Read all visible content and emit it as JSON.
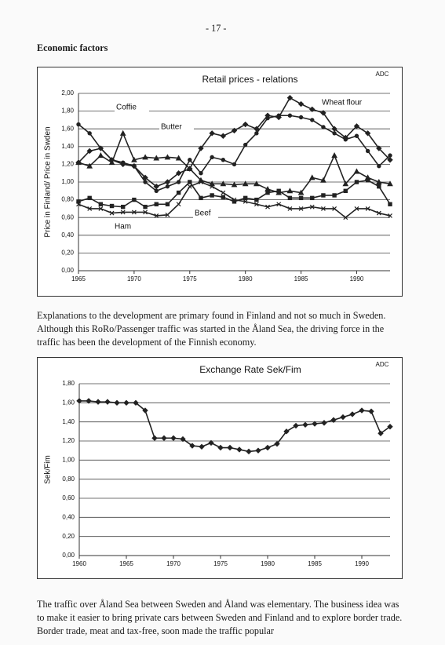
{
  "page_number": "- 17 -",
  "heading": "Economic factors",
  "paragraphs": [
    "Explanations to the development are primary found in Finland and not so much in Sweden. Although this RoRo/Passenger traffic was started in the Åland Sea, the driving force in the traffic has been the development of the Finnish economy.",
    "The traffic over Åland Sea between Sweden and Åland was elementary. The business idea was to make it easier to bring private cars between Sweden and Finland and to explore border trade. Border trade, meat and tax-free, soon made the traffic popular"
  ],
  "chart_data": [
    {
      "type": "line",
      "title": "Retail prices - relations",
      "source": "ADC",
      "y_label": "Price in Finland/ Price in Swden",
      "x": [
        1965,
        1966,
        1967,
        1968,
        1969,
        1970,
        1971,
        1972,
        1973,
        1974,
        1975,
        1976,
        1977,
        1978,
        1979,
        1980,
        1981,
        1982,
        1983,
        1984,
        1985,
        1986,
        1987,
        1988,
        1989,
        1990,
        1991,
        1992,
        1993
      ],
      "xlim": [
        1965,
        1993
      ],
      "xticks": [
        1965,
        1970,
        1975,
        1980,
        1985,
        1990
      ],
      "ylim": [
        0,
        2
      ],
      "yticks": [
        {
          "value": 0,
          "label": "0,00"
        },
        {
          "value": 0.2,
          "label": "0,20"
        },
        {
          "value": 0.4,
          "label": "0,40"
        },
        {
          "value": 0.6,
          "label": "0,60"
        },
        {
          "value": 0.8,
          "label": "0,80"
        },
        {
          "value": 1,
          "label": "1,00"
        },
        {
          "value": 1.2,
          "label": "1,20"
        },
        {
          "value": 1.4,
          "label": "1,40"
        },
        {
          "value": 1.6,
          "label": "1,60"
        },
        {
          "value": 1.8,
          "label": "1,80"
        },
        {
          "value": 2,
          "label": "2,00"
        }
      ],
      "grid": true,
      "series": [
        {
          "name": "Coffie",
          "color": "#222222",
          "marker": "triangle",
          "values": [
            1.22,
            1.18,
            1.3,
            1.22,
            1.55,
            1.25,
            1.28,
            1.27,
            1.28,
            1.27,
            1.15,
            1.02,
            0.98,
            0.98,
            0.97,
            0.98,
            0.98,
            0.92,
            0.88,
            0.9,
            0.88,
            1.05,
            1.02,
            1.3,
            0.98,
            1.12,
            1.05,
            1.0,
            0.98
          ]
        },
        {
          "name": "Butter",
          "color": "#222222",
          "marker": "circle",
          "values": [
            1.65,
            1.55,
            1.38,
            1.25,
            1.22,
            1.18,
            1.0,
            0.9,
            0.95,
            1.0,
            1.25,
            1.1,
            1.28,
            1.25,
            1.2,
            1.42,
            1.55,
            1.72,
            1.75,
            1.75,
            1.73,
            1.7,
            1.62,
            1.55,
            1.48,
            1.52,
            1.35,
            1.18,
            1.3
          ]
        },
        {
          "name": "Wheat flour",
          "color": "#222222",
          "marker": "diamond",
          "values": [
            1.22,
            1.35,
            1.38,
            1.25,
            1.2,
            1.18,
            1.05,
            0.95,
            1.0,
            1.1,
            1.15,
            1.38,
            1.55,
            1.52,
            1.58,
            1.65,
            1.6,
            1.75,
            1.73,
            1.95,
            1.88,
            1.82,
            1.78,
            1.6,
            1.5,
            1.63,
            1.55,
            1.38,
            1.25
          ]
        },
        {
          "name": "Beef",
          "color": "#222222",
          "marker": "square",
          "values": [
            0.78,
            0.82,
            0.75,
            0.73,
            0.72,
            0.8,
            0.72,
            0.75,
            0.75,
            0.88,
            1.0,
            0.82,
            0.85,
            0.83,
            0.78,
            0.82,
            0.8,
            0.88,
            0.9,
            0.82,
            0.82,
            0.82,
            0.85,
            0.85,
            0.9,
            1.0,
            1.02,
            0.95,
            0.75
          ]
        },
        {
          "name": "Ham",
          "color": "#222222",
          "marker": "x",
          "values": [
            0.75,
            0.7,
            0.7,
            0.65,
            0.66,
            0.66,
            0.66,
            0.62,
            0.63,
            0.75,
            0.95,
            1.0,
            0.95,
            0.88,
            0.8,
            0.78,
            0.75,
            0.72,
            0.75,
            0.7,
            0.7,
            0.72,
            0.7,
            0.7,
            0.6,
            0.7,
            0.7,
            0.65,
            0.62
          ]
        }
      ]
    },
    {
      "type": "line",
      "title": "Exchange Rate Sek/Fim",
      "source": "ADC",
      "y_label": "Sek/Fim",
      "x": [
        1960,
        1961,
        1962,
        1963,
        1964,
        1965,
        1966,
        1967,
        1968,
        1969,
        1970,
        1971,
        1972,
        1973,
        1974,
        1975,
        1976,
        1977,
        1978,
        1979,
        1980,
        1981,
        1982,
        1983,
        1984,
        1985,
        1986,
        1987,
        1988,
        1989,
        1990,
        1991,
        1992,
        1993
      ],
      "xlim": [
        1960,
        1993
      ],
      "xticks": [
        1960,
        1965,
        1970,
        1975,
        1980,
        1985,
        1990
      ],
      "ylim": [
        0,
        1.8
      ],
      "yticks": [
        {
          "value": 0,
          "label": "0,00"
        },
        {
          "value": 0.2,
          "label": "0,20"
        },
        {
          "value": 0.4,
          "label": "0,40"
        },
        {
          "value": 0.6,
          "label": "0,60"
        },
        {
          "value": 0.8,
          "label": "0,80"
        },
        {
          "value": 1,
          "label": "1,00"
        },
        {
          "value": 1.2,
          "label": "1,20"
        },
        {
          "value": 1.4,
          "label": "1,40"
        },
        {
          "value": 1.6,
          "label": "1,60"
        },
        {
          "value": 1.8,
          "label": "1,80"
        }
      ],
      "grid": true,
      "series": [
        {
          "name": "Sek/Fim",
          "color": "#222222",
          "marker": "diamond",
          "values": [
            1.62,
            1.62,
            1.61,
            1.61,
            1.6,
            1.6,
            1.6,
            1.52,
            1.23,
            1.23,
            1.23,
            1.22,
            1.15,
            1.14,
            1.18,
            1.13,
            1.13,
            1.11,
            1.09,
            1.1,
            1.13,
            1.17,
            1.3,
            1.36,
            1.37,
            1.38,
            1.39,
            1.42,
            1.45,
            1.48,
            1.52,
            1.51,
            1.28,
            1.35
          ]
        }
      ]
    }
  ]
}
